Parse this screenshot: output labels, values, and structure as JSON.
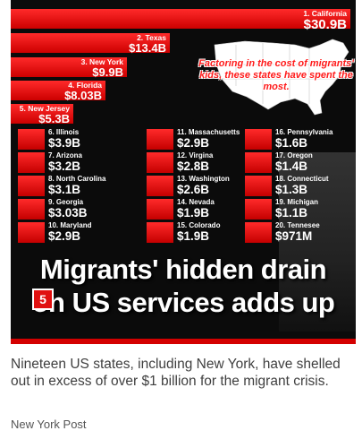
{
  "top_bars": [
    {
      "label": "1. California",
      "value": "$30.9B"
    },
    {
      "label": "2. Texas",
      "value": "$13.4B"
    },
    {
      "label": "3. New York",
      "value": "$9.9B"
    },
    {
      "label": "4. Florida",
      "value": "$8.03B"
    },
    {
      "label": "5. New Jersey",
      "value": "$5.3B"
    }
  ],
  "grid": [
    {
      "label": "6. Illinois",
      "value": "$3.9B"
    },
    {
      "label": "7. Arizona",
      "value": "$3.2B"
    },
    {
      "label": "8. North Carolina",
      "value": "$3.1B"
    },
    {
      "label": "9. Georgia",
      "value": "$3.03B"
    },
    {
      "label": "10. Maryland",
      "value": "$2.9B"
    },
    {
      "label": "11. Massachusetts",
      "value": "$2.9B"
    },
    {
      "label": "12. Virgina",
      "value": "$2.8B"
    },
    {
      "label": "13. Washington",
      "value": "$2.6B"
    },
    {
      "label": "14. Nevada",
      "value": "$1.9B"
    },
    {
      "label": "15. Colorado",
      "value": "$1.9B"
    },
    {
      "label": "16. Pennsylvania",
      "value": "$1.6B"
    },
    {
      "label": "17. Oregon",
      "value": "$1.4B"
    },
    {
      "label": "18. Connecticut",
      "value": "$1.3B"
    },
    {
      "label": "19. Michigan",
      "value": "$1.1B"
    },
    {
      "label": "20. Tennesee",
      "value": "$971M"
    }
  ],
  "callout": "Factoring in the cost of migrants' kids, these states have spent the most.",
  "headline": {
    "line1": "Migrants' hidden drain",
    "line2": "on US services adds up"
  },
  "slide_number": "5",
  "caption": "Nineteen US states, including New York, have shelled out in excess of over $1 billion for the migrant crisis.",
  "source": "New York Post",
  "colors": {
    "accent": "#d40000",
    "bar": "#e60000",
    "background": "#0b0b0b"
  }
}
